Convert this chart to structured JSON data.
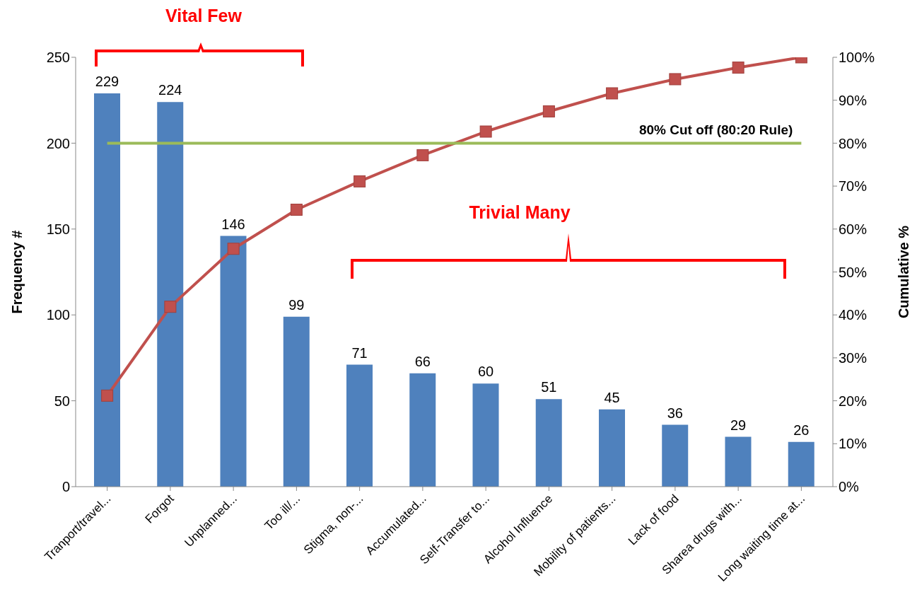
{
  "chart_data": {
    "type": "bar",
    "ylabel": "Frequency #",
    "y2label": "Cumulative %",
    "categories": [
      "Tranport/travel...",
      "Forgot",
      "Unplanned...",
      "Too ill/...",
      "Stigma, non-...",
      "Accumulated...",
      "Self-Transfer to...",
      "Alcohol Influence",
      "Mobility of patients...",
      "Lack of food",
      "Sharea drugs with...",
      "Long waiting time at..."
    ],
    "series": [
      {
        "color": "#4f81bd",
        "values": [
          229,
          224,
          146,
          99,
          71,
          66,
          60,
          51,
          45,
          36,
          29,
          26
        ],
        "value_labels": [
          "229",
          "224",
          "146",
          "99",
          "71",
          "66",
          "60",
          "51",
          "45",
          "36",
          "29",
          "26"
        ]
      },
      {
        "type": "line",
        "axis": "y2",
        "color": "#c0504d",
        "marker": "square",
        "values": [
          21.2,
          41.9,
          55.4,
          64.5,
          71.1,
          77.2,
          82.7,
          87.4,
          91.6,
          94.9,
          97.6,
          100
        ]
      }
    ],
    "ylim": [
      0,
      250
    ],
    "yticks": [
      0,
      50,
      100,
      150,
      200,
      250
    ],
    "y2lim": [
      0,
      100
    ],
    "y2ticks": [
      {
        "value": 0,
        "label": "0%"
      },
      {
        "value": 10,
        "label": "10%"
      },
      {
        "value": 20,
        "label": "20%"
      },
      {
        "value": 30,
        "label": "30%"
      },
      {
        "value": 40,
        "label": "40%"
      },
      {
        "value": 50,
        "label": "50%"
      },
      {
        "value": 60,
        "label": "60%"
      },
      {
        "value": 70,
        "label": "70%"
      },
      {
        "value": 80,
        "label": "80%"
      },
      {
        "value": 90,
        "label": "90%"
      },
      {
        "value": 100,
        "label": "100%"
      }
    ],
    "ref_lines": [
      {
        "axis": "y2",
        "value": 80,
        "label": "80% Cut off  (80:20 Rule)",
        "color": "#9bbb59"
      }
    ],
    "annotations": [
      "Vital Few",
      "Trivial Many"
    ],
    "grid": false,
    "legend": false
  }
}
